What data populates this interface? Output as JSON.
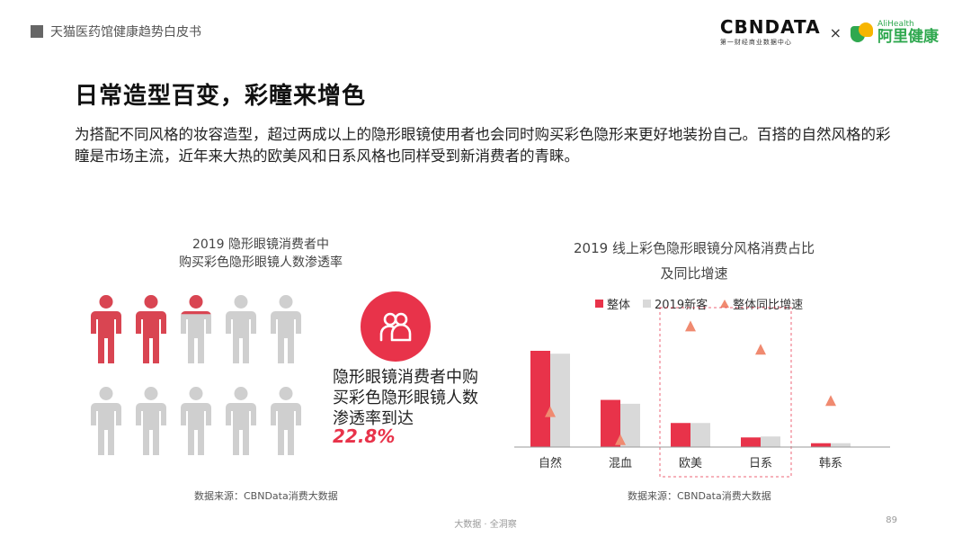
{
  "header": {
    "report_name": "天猫医药馆健康趋势白皮书",
    "logo_cbn_main": "CBNDATA",
    "logo_cbn_sub": "第一财经商业数据中心",
    "logo_times": "×",
    "logo_ali_en": "AliHealth",
    "logo_ali_cn": "阿里健康"
  },
  "title": "日常造型百变，彩瞳来增色",
  "description": "为搭配不同风格的妆容造型，超过两成以上的隐形眼镜使用者也会同时购买彩色隐形来更好地装扮自己。百搭的自然风格的彩瞳是市场主流，近年来大热的欧美风和日系风格也同样受到新消费者的青睐。",
  "left_panel": {
    "title_line1": "2019 隐形眼镜消费者中",
    "title_line2": "购买彩色隐形眼镜人数渗透率",
    "callout_text": "隐形眼镜消费者中购买彩色隐形眼镜人数渗透率到达",
    "penetration": "22.8%",
    "penetration_value": 22.8,
    "icon_total": 10,
    "colors": {
      "highlight": "#d94552",
      "muted": "#cfcfcf",
      "accent": "#e8334a"
    },
    "source": "数据来源：CBNData消费大数据"
  },
  "chart_data": {
    "type": "bar",
    "title_line1": "2019 线上彩色隐形眼镜分风格消费占比",
    "title_line2": "及同比增速",
    "categories": [
      "自然",
      "混血",
      "欧美",
      "日系",
      "韩系"
    ],
    "series": [
      {
        "name": "整体",
        "kind": "bar",
        "color": "#e8334a",
        "values": [
          100,
          49,
          25,
          10,
          4
        ]
      },
      {
        "name": "2019新客",
        "kind": "bar",
        "color": "#d9d9d9",
        "values": [
          97,
          45,
          25,
          11,
          4
        ]
      },
      {
        "name": "整体同比增速",
        "kind": "marker",
        "color": "#f08a70",
        "values": [
          38,
          8,
          130,
          105,
          50
        ]
      }
    ],
    "highlight_categories": [
      "欧美",
      "日系"
    ],
    "source": "数据来源：CBNData消费大数据"
  },
  "footer": {
    "text": "大数据 · 全洞察",
    "page": "89"
  }
}
